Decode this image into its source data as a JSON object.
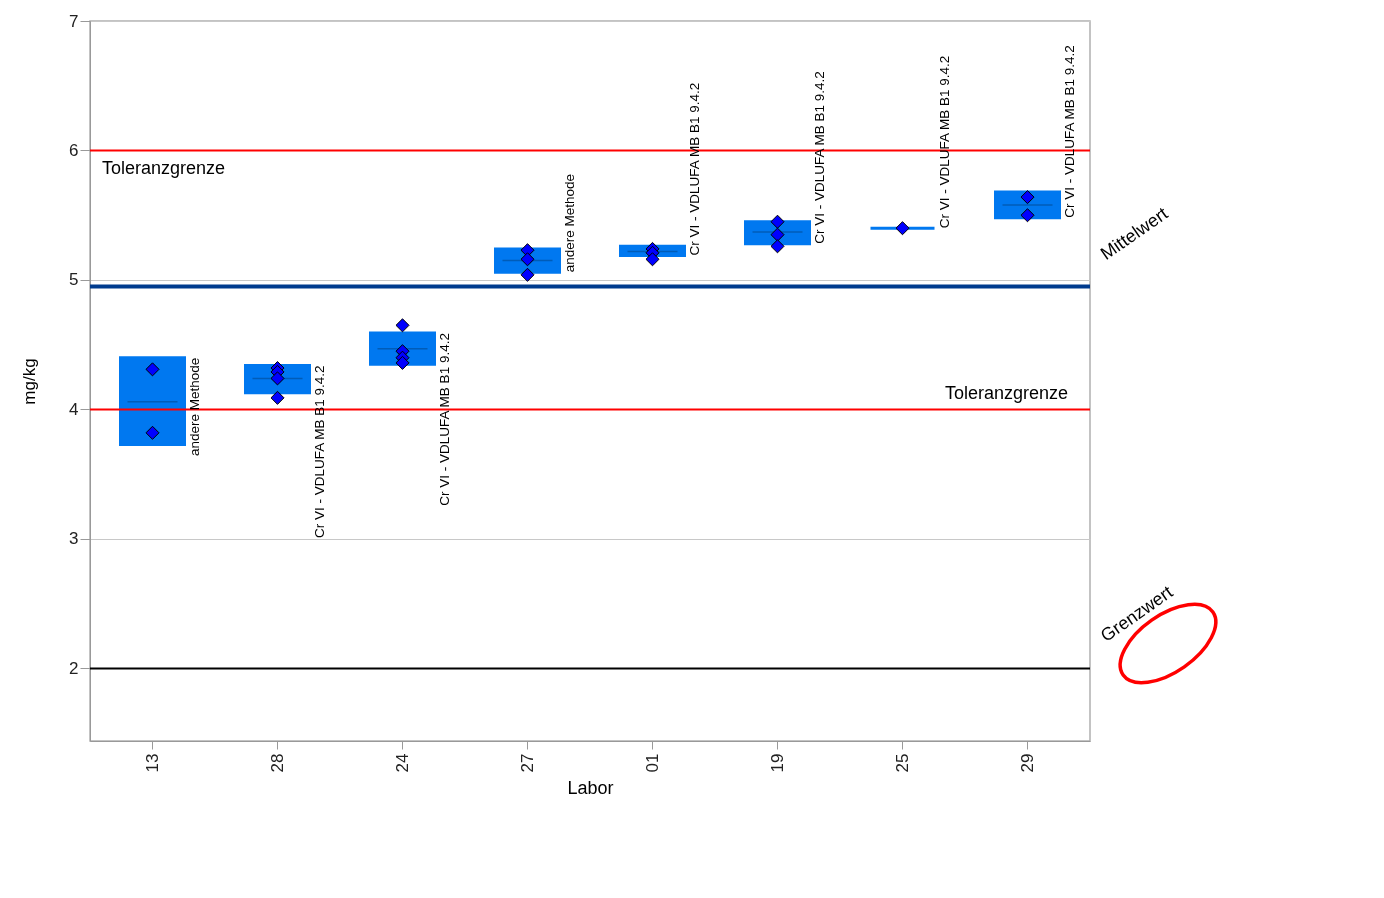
{
  "chart_data": {
    "type": "box",
    "xlabel": "Labor",
    "ylabel": "mg/kg",
    "categories": [
      "13",
      "28",
      "24",
      "27",
      "01",
      "19",
      "25",
      "29"
    ],
    "ylim": [
      1.44,
      7
    ],
    "yticks": [
      2,
      3,
      4,
      5,
      6,
      7
    ],
    "grid": "y",
    "marker": "diamond",
    "series": [
      {
        "color": "#0078f0",
        "boxes": [
          {
            "low": 3.73,
            "q1": 3.73,
            "median": 4.06,
            "q3": 4.4,
            "high": 4.4
          },
          {
            "low": 4.13,
            "q1": 4.13,
            "median": 4.24,
            "q3": 4.34,
            "high": 4.34
          },
          {
            "low": 4.35,
            "q1": 4.35,
            "median": 4.47,
            "q3": 4.59,
            "high": 4.59
          },
          {
            "low": 5.06,
            "q1": 5.06,
            "median": 5.15,
            "q3": 5.24,
            "high": 5.24
          },
          {
            "low": 5.19,
            "q1": 5.19,
            "median": 5.22,
            "q3": 5.26,
            "high": 5.26
          },
          {
            "low": 5.28,
            "q1": 5.28,
            "median": 5.37,
            "q3": 5.45,
            "high": 5.45
          },
          {
            "low": 5.4,
            "q1": 5.4,
            "median": 5.4,
            "q3": 5.4,
            "high": 5.4
          },
          {
            "low": 5.48,
            "q1": 5.48,
            "median": 5.58,
            "q3": 5.68,
            "high": 5.68
          }
        ]
      },
      {
        "type": "scatter",
        "color": "#0000ff",
        "x": [
          "13",
          "13",
          "28",
          "28",
          "28",
          "28",
          "24",
          "24",
          "24",
          "24",
          "27",
          "27",
          "27",
          "01",
          "01",
          "01",
          "19",
          "19",
          "19",
          "25",
          "25",
          "29",
          "29"
        ],
        "values": [
          4.31,
          3.82,
          4.32,
          4.29,
          4.24,
          4.09,
          4.65,
          4.45,
          4.4,
          4.36,
          5.23,
          5.16,
          5.04,
          5.24,
          5.21,
          5.16,
          5.45,
          5.35,
          5.26,
          5.4,
          null,
          5.64,
          5.5
        ]
      }
    ],
    "ref_lines": [
      {
        "axis": "y",
        "value": 6,
        "label": "Toleranzgrenze",
        "color": "#ff0000"
      },
      {
        "axis": "y",
        "value": 4,
        "label": "Toleranzgrenze",
        "color": "#ff0000"
      },
      {
        "axis": "y",
        "value": 4.95,
        "label": "Mittelwert",
        "color": "#003b8e"
      },
      {
        "axis": "y",
        "value": 2,
        "label": "Grenzwert",
        "color": "#000000"
      }
    ],
    "annotations": [
      "andere Methode",
      "Cr VI - VDLUFA MB B1 9.4.2",
      "Cr VI - VDLUFA MB B1 9.4.2",
      "andere Methode",
      "Cr VI - VDLUFA MB B1 9.4.2",
      "Cr VI - VDLUFA MB B1 9.4.2",
      "Cr VI - VDLUFA MB B1 9.4.2",
      "Cr VI - VDLUFA MB B1 9.4.2"
    ]
  }
}
